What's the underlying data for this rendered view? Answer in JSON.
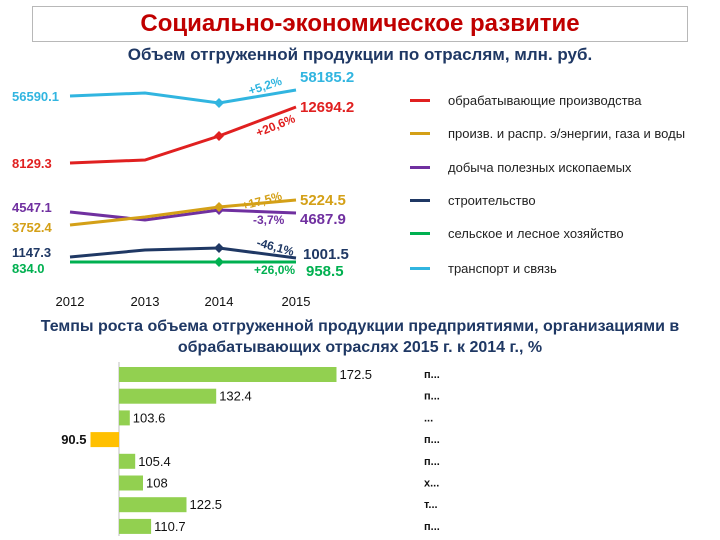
{
  "header": {
    "title": "Социально-экономическое развитие",
    "subtitle": "Объем отгруженной продукции по отраслям, млн. руб."
  },
  "section2_title": "Темпы роста объема отгруженной продукции предприятиями, организациями в обрабатывающих отраслях 2015 г. к 2014 г., %",
  "chart_data": [
    {
      "type": "line",
      "x": [
        "2012",
        "2013",
        "2014",
        "2015"
      ],
      "series": [
        {
          "name": "транспорт и связь",
          "color": "#31b5e0",
          "values": [
            56590.1,
            null,
            null,
            58185.2
          ],
          "start_label": "56590.1",
          "end_label": "58185.2",
          "change": "+5,2%"
        },
        {
          "name": "обрабатывающие производства",
          "color": "#e02020",
          "values": [
            8129.3,
            null,
            null,
            12694.2
          ],
          "start_label": "8129.3",
          "end_label": "12694.2",
          "change": "+20,6%"
        },
        {
          "name": "добыча полезных ископаемых",
          "color": "#7030a0",
          "values": [
            4547.1,
            null,
            null,
            4687.9
          ],
          "start_label": "4547.1",
          "end_label": "4687.9",
          "change": "-3,7%"
        },
        {
          "name": "произв. и распр. э/энергии, газа и воды",
          "color": "#d4a017",
          "values": [
            3752.4,
            null,
            null,
            5224.5
          ],
          "start_label": "3752.4",
          "end_label": "5224.5",
          "change": "+17,5%"
        },
        {
          "name": "строительство",
          "color": "#1f3864",
          "values": [
            1147.3,
            null,
            null,
            1001.5
          ],
          "start_label": "1147.3",
          "end_label": "1001.5",
          "change": "-46,1%"
        },
        {
          "name": "сельское и лесное хозяйство",
          "color": "#00b050",
          "values": [
            834.0,
            null,
            null,
            958.5
          ],
          "start_label": "834.0",
          "end_label": "958.5",
          "change": "+26,0%"
        }
      ],
      "legend_order": [
        "обрабатывающие производства",
        "произв. и распр. э/энергии, газа и воды",
        "добыча полезных ископаемых",
        "строительство",
        "сельское и лесное хозяйство",
        "транспорт и связь"
      ],
      "legend_position": "right",
      "grid": false
    },
    {
      "type": "bar",
      "orientation": "horizontal",
      "baseline": 100,
      "categories": [
        "п...",
        "п...",
        "...",
        "п...",
        "п...",
        "х...",
        "т...",
        "п..."
      ],
      "values": [
        172.5,
        132.4,
        103.6,
        90.5,
        105.4,
        108,
        122.5,
        110.7
      ],
      "value_labels": [
        "172.5",
        "132.4",
        "103.6",
        "90.5",
        "105.4",
        "108",
        "122.5",
        "110.7"
      ],
      "colors": [
        "#92d050",
        "#92d050",
        "#92d050",
        "#ffc000",
        "#92d050",
        "#92d050",
        "#92d050",
        "#92d050"
      ],
      "grid": false
    }
  ]
}
